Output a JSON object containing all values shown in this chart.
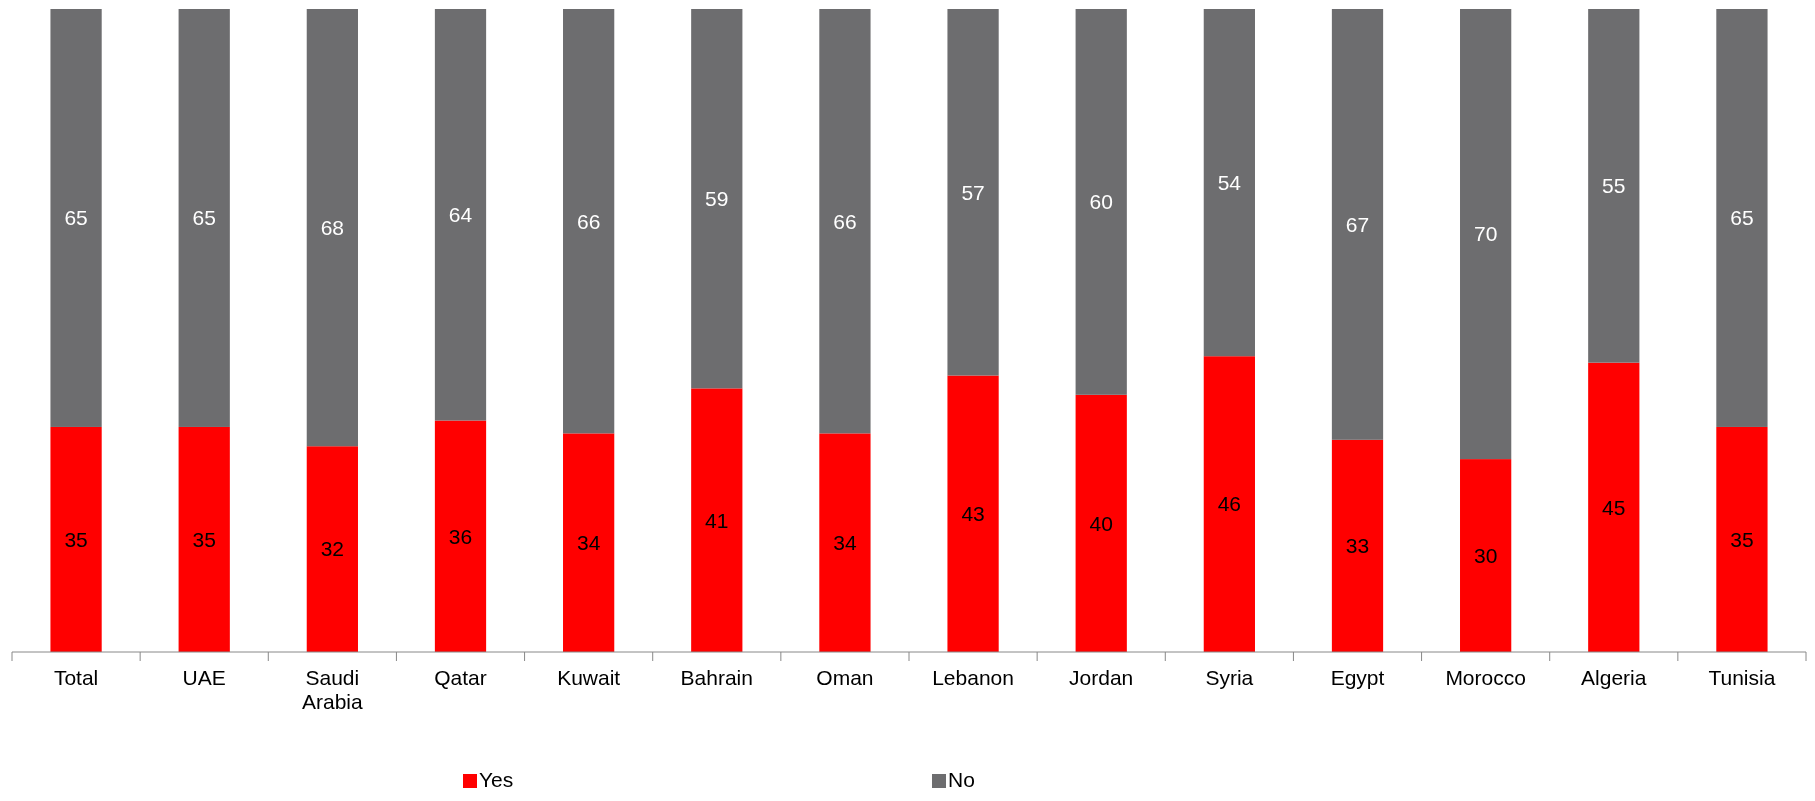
{
  "chart_data": {
    "type": "bar",
    "stacked": true,
    "categories": [
      "Total",
      "UAE",
      "Saudi Arabia",
      "Qatar",
      "Kuwait",
      "Bahrain",
      "Oman",
      "Lebanon",
      "Jordan",
      "Syria",
      "Egypt",
      "Morocco",
      "Algeria",
      "Tunisia"
    ],
    "series": [
      {
        "name": "Yes",
        "color": "#ff0000",
        "values": [
          35,
          35,
          32,
          36,
          34,
          41,
          34,
          43,
          40,
          46,
          33,
          30,
          45,
          35
        ]
      },
      {
        "name": "No",
        "color": "#6d6d6f",
        "values": [
          65,
          65,
          68,
          64,
          66,
          59,
          66,
          57,
          60,
          54,
          67,
          70,
          55,
          65
        ]
      }
    ],
    "ylim": [
      0,
      100
    ],
    "data_labels": true,
    "legend": "bottom"
  }
}
